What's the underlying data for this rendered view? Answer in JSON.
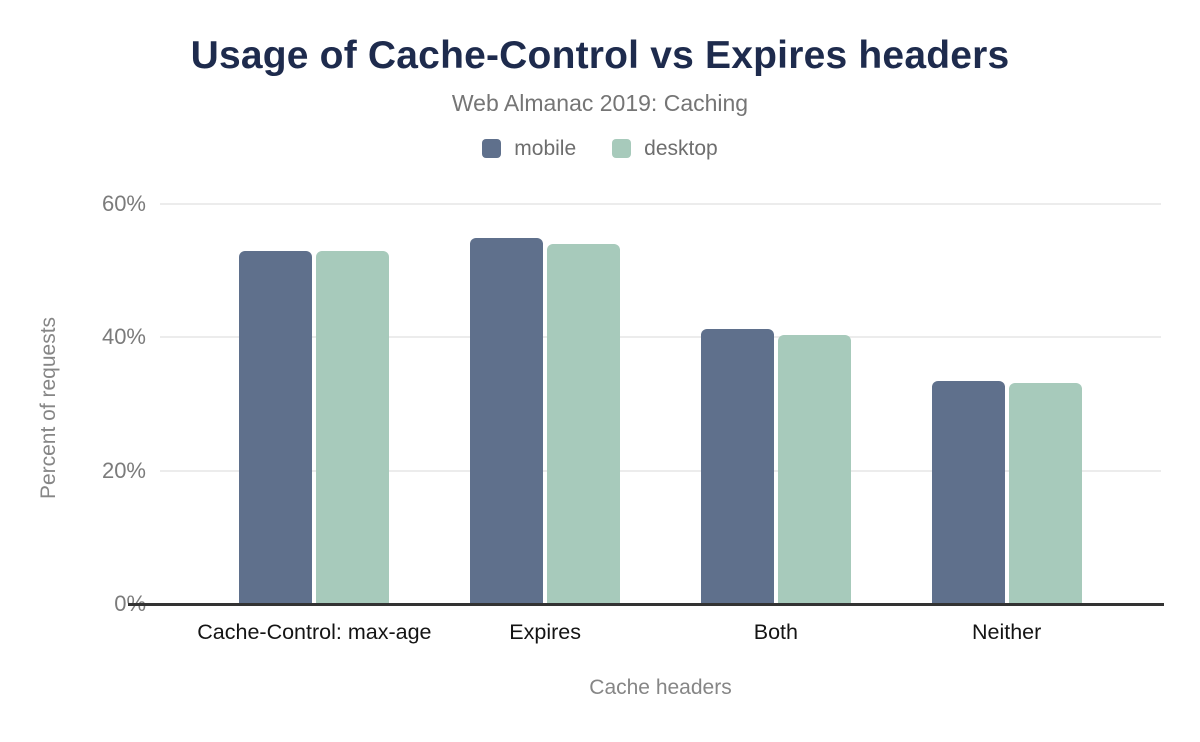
{
  "header": {
    "title": "Usage of Cache-Control vs Expires headers",
    "subtitle": "Web Almanac 2019: Caching"
  },
  "chart_data": {
    "type": "bar",
    "title": "Usage of Cache-Control vs Expires headers",
    "subtitle": "Web Almanac 2019: Caching",
    "categories": [
      "Cache-Control: max-age",
      "Expires",
      "Both",
      "Neither"
    ],
    "series": [
      {
        "name": "mobile",
        "color": "#5f708c",
        "values": [
          53.0,
          54.9,
          41.3,
          33.5
        ]
      },
      {
        "name": "desktop",
        "color": "#a7cabb",
        "values": [
          53.0,
          54.0,
          40.4,
          33.1
        ]
      }
    ],
    "xlabel": "Cache headers",
    "ylabel": "Percent of requests",
    "ylim": [
      0,
      60
    ],
    "yticks": [
      0,
      20,
      40,
      60
    ],
    "ytick_suffix": "%",
    "grid": true,
    "legend_position": "top"
  },
  "colors": {
    "title_text": "#1e2b4d",
    "subtitle_text": "#757575",
    "legend_text": "#6e6e6e",
    "axis_tick_text": "#7b7b7b",
    "axis_title_text": "#868686",
    "category_text": "#141414",
    "gridline": "#ececec",
    "baseline": "#333333",
    "background": "#ffffff"
  }
}
